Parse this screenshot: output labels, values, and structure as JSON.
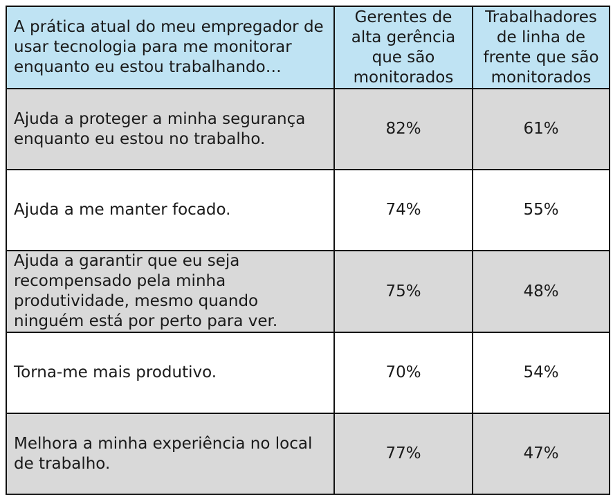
{
  "chart_data": {
    "type": "table",
    "columns": [
      "A prática atual do meu empregador de usar tecnologia para me monitorar enquanto eu estou trabalhando…",
      "Gerentes de alta gerência que são monitorados",
      "Trabalhadores de linha de frente que são monitorados"
    ],
    "rows": [
      {
        "statement": "Ajuda a proteger a minha segurança enquanto eu estou no trabalho.",
        "managers": "82%",
        "frontline": "61%"
      },
      {
        "statement": "Ajuda a me manter focado.",
        "managers": "74%",
        "frontline": "55%"
      },
      {
        "statement": "Ajuda a garantir que eu seja recompensado pela minha produtividade, mesmo quando ninguém está por perto para ver.",
        "managers": "75%",
        "frontline": "48%"
      },
      {
        "statement": "Torna-me mais produtivo.",
        "managers": "70%",
        "frontline": "54%"
      },
      {
        "statement": "Melhora a minha experiência no local de trabalho.",
        "managers": "77%",
        "frontline": "47%"
      }
    ]
  },
  "colors": {
    "header_bg": "#bfe3f3",
    "shaded_row_bg": "#d9d9d9",
    "plain_row_bg": "#ffffff",
    "border": "#111111"
  }
}
